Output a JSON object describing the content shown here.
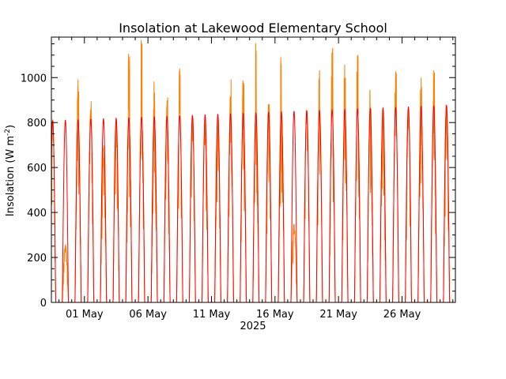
{
  "chart_data": {
    "type": "line",
    "title": "Insolation at Lakewood Elementary School",
    "ylabel_main": "Insolation (W m",
    "ylabel_sup": "-2",
    "ylabel_close": ")",
    "xlabel": "2025",
    "ylim": [
      0,
      1180
    ],
    "xlim": [
      -2.6,
      29.2
    ],
    "x_unit": "days since 01 May 2025 (date axis)",
    "grid": false,
    "legend": "none",
    "y_ticks": [
      {
        "v": 0,
        "label": "0"
      },
      {
        "v": 200,
        "label": "200"
      },
      {
        "v": 400,
        "label": "400"
      },
      {
        "v": 600,
        "label": "600"
      },
      {
        "v": 800,
        "label": "800"
      },
      {
        "v": 1000,
        "label": "1000"
      }
    ],
    "x_ticks": [
      {
        "v": 0,
        "label": "01 May"
      },
      {
        "v": 5,
        "label": "06 May"
      },
      {
        "v": 10,
        "label": "11 May"
      },
      {
        "v": 15,
        "label": "16 May"
      },
      {
        "v": 20,
        "label": "21 May"
      },
      {
        "v": 25,
        "label": "26 May"
      }
    ],
    "series": [
      {
        "color": "#FF8000",
        "kind": "measured daily peak",
        "peaks": [
          {
            "date": "2025-04-28",
            "peak": 810
          },
          {
            "date": "2025-04-29",
            "peak": 260
          },
          {
            "date": "2025-04-30",
            "peak": 1000
          },
          {
            "date": "2025-05-01",
            "peak": 920
          },
          {
            "date": "2025-05-02",
            "peak": 700
          },
          {
            "date": "2025-05-03",
            "peak": 800
          },
          {
            "date": "2025-05-04",
            "peak": 1130
          },
          {
            "date": "2025-05-05",
            "peak": 1175
          },
          {
            "date": "2025-05-06",
            "peak": 1010
          },
          {
            "date": "2025-05-07",
            "peak": 940
          },
          {
            "date": "2025-05-08",
            "peak": 1050
          },
          {
            "date": "2025-05-09",
            "peak": 820
          },
          {
            "date": "2025-05-10",
            "peak": 820
          },
          {
            "date": "2025-05-11",
            "peak": 830
          },
          {
            "date": "2025-05-12",
            "peak": 1030
          },
          {
            "date": "2025-05-13",
            "peak": 1050
          },
          {
            "date": "2025-05-14",
            "peak": 1155
          },
          {
            "date": "2025-05-15",
            "peak": 910
          },
          {
            "date": "2025-05-16",
            "peak": 1125
          },
          {
            "date": "2025-05-17",
            "peak": 350
          },
          {
            "date": "2025-05-18",
            "peak": 860
          },
          {
            "date": "2025-05-19",
            "peak": 1115
          },
          {
            "date": "2025-05-20",
            "peak": 1180
          },
          {
            "date": "2025-05-21",
            "peak": 1085
          },
          {
            "date": "2025-05-22",
            "peak": 1140
          },
          {
            "date": "2025-05-23",
            "peak": 960
          },
          {
            "date": "2025-05-24",
            "peak": 850
          },
          {
            "date": "2025-05-25",
            "peak": 1030
          },
          {
            "date": "2025-05-26",
            "peak": 870
          },
          {
            "date": "2025-05-27",
            "peak": 1000
          },
          {
            "date": "2025-05-28",
            "peak": 1050
          },
          {
            "date": "2025-05-29",
            "peak": 880
          },
          {
            "date": "2025-05-30",
            "peak": 880
          }
        ]
      },
      {
        "color": "#FF0000",
        "kind": "clear-sky daily peak",
        "peak_start": 810,
        "peak_end": 880
      }
    ]
  }
}
